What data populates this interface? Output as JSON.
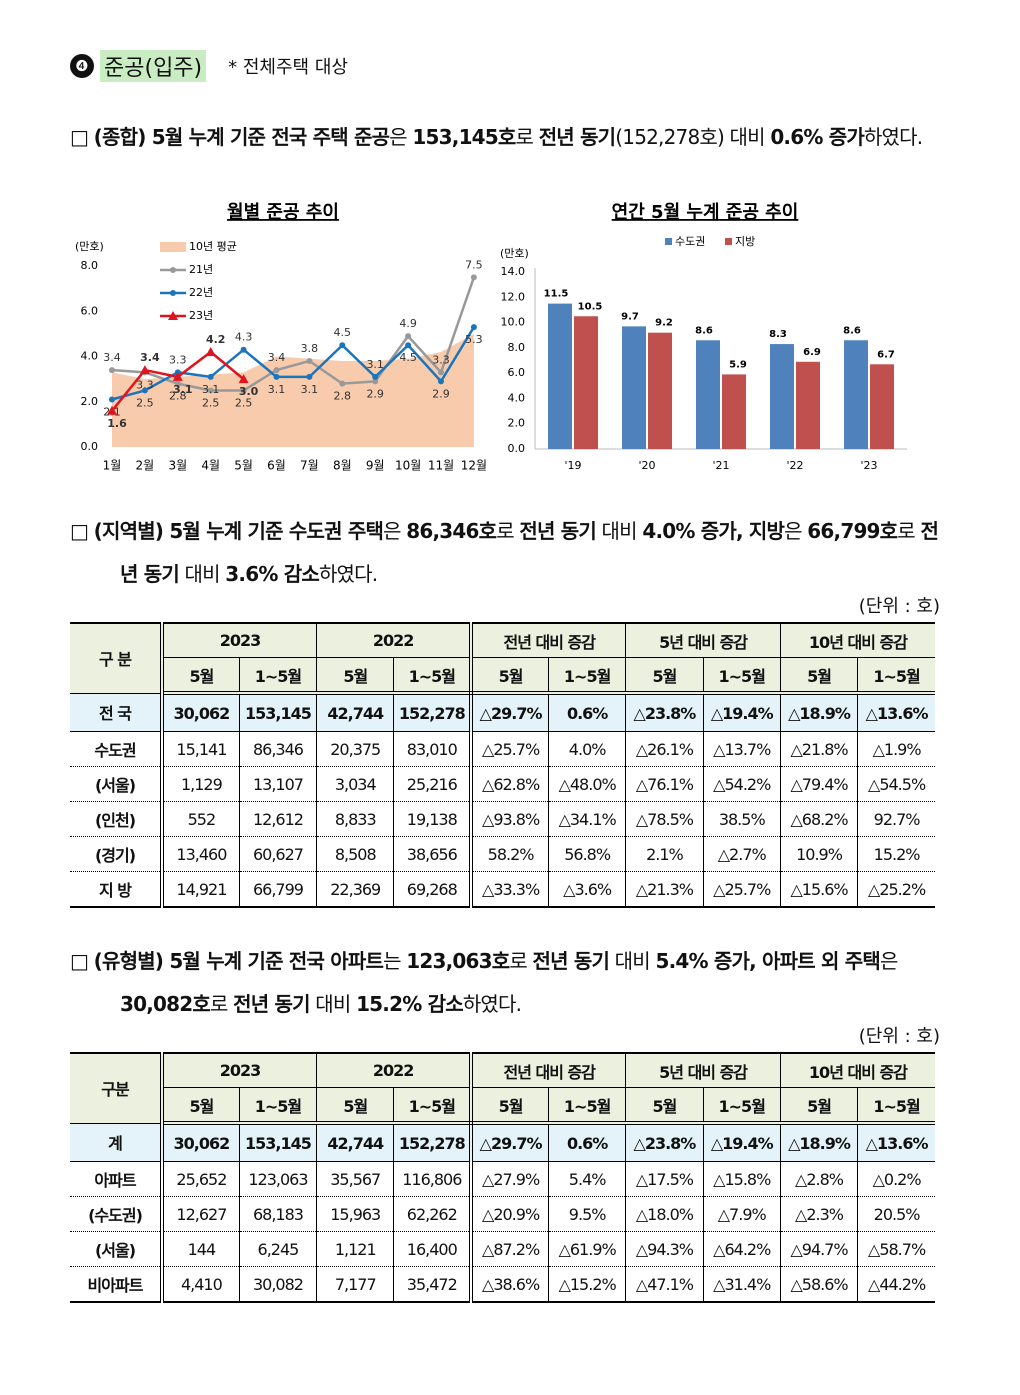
{
  "heading": {
    "number": "❹",
    "title": "준공(입주)",
    "note": "* 전체주택 대상"
  },
  "paragraphs": [
    {
      "bullet": "□",
      "runs": [
        {
          "text": "(종합) 5월 누계 기준 전국 주택 준공",
          "bold": true
        },
        {
          "text": "은 ",
          "bold": false
        },
        {
          "text": "153,145호",
          "bold": true
        },
        {
          "text": "로 ",
          "bold": false
        },
        {
          "text": "전년 동기",
          "bold": true
        },
        {
          "text": "(152,278호) 대비 ",
          "bold": false
        },
        {
          "text": "0.6% 증가",
          "bold": true
        },
        {
          "text": "하였다.",
          "bold": false
        }
      ]
    },
    {
      "bullet": "□",
      "runs": [
        {
          "text": "(지역별) 5월 누계 기준 수도권 주택",
          "bold": true
        },
        {
          "text": "은 ",
          "bold": false
        },
        {
          "text": "86,346호",
          "bold": true
        },
        {
          "text": "로 ",
          "bold": false
        },
        {
          "text": "전년 동기",
          "bold": true
        },
        {
          "text": " 대비 ",
          "bold": false
        },
        {
          "text": "4.0% 증가, 지방",
          "bold": true
        },
        {
          "text": "은 ",
          "bold": false
        },
        {
          "text": "66,799호",
          "bold": true
        },
        {
          "text": "로 ",
          "bold": false
        },
        {
          "text": "전년 동기",
          "bold": true
        },
        {
          "text": " 대비 ",
          "bold": false
        },
        {
          "text": "3.6% 감소",
          "bold": true
        },
        {
          "text": "하였다.",
          "bold": false
        }
      ]
    },
    {
      "bullet": "□",
      "runs": [
        {
          "text": "(유형별) 5월 누계 기준 전국 아파트",
          "bold": true
        },
        {
          "text": "는 ",
          "bold": false
        },
        {
          "text": "123,063호",
          "bold": true
        },
        {
          "text": "로 ",
          "bold": false
        },
        {
          "text": "전년 동기",
          "bold": true
        },
        {
          "text": " 대비 ",
          "bold": false
        },
        {
          "text": "5.4% 증가, 아파트 외 주택",
          "bold": true
        },
        {
          "text": "은 ",
          "bold": false
        },
        {
          "text": "30,082호",
          "bold": true
        },
        {
          "text": "로 ",
          "bold": false
        },
        {
          "text": "전년 동기",
          "bold": true
        },
        {
          "text": " 대비 ",
          "bold": false
        },
        {
          "text": "15.2% 감소",
          "bold": true
        },
        {
          "text": "하였다.",
          "bold": false
        }
      ]
    }
  ],
  "chart_data": [
    {
      "type": "line",
      "title": "월별 준공 추이",
      "y_label": "(만호)",
      "categories": [
        "1월",
        "2월",
        "3월",
        "4월",
        "5월",
        "6월",
        "7월",
        "8월",
        "9월",
        "10월",
        "11월",
        "12월"
      ],
      "ylim": [
        0,
        8
      ],
      "yticks": [
        {
          "value": 0,
          "label": "0.0"
        },
        {
          "value": 2,
          "label": "2.0"
        },
        {
          "value": 4,
          "label": "4.0"
        },
        {
          "value": 6,
          "label": "6.0"
        },
        {
          "value": 8,
          "label": "8.0"
        }
      ],
      "series": [
        {
          "name": "10년 평균",
          "style": "area",
          "color": "#f8cbad",
          "values": [
            3.3,
            3.0,
            3.1,
            3.2,
            3.3,
            4.0,
            3.9,
            3.8,
            3.8,
            3.9,
            4.2,
            5.0
          ]
        },
        {
          "name": "21년",
          "style": "line",
          "marker": "circle",
          "color": "#999999",
          "values": [
            3.4,
            3.3,
            2.8,
            2.5,
            2.5,
            3.4,
            3.8,
            2.8,
            2.9,
            4.9,
            3.3,
            7.5
          ]
        },
        {
          "name": "22년",
          "style": "line",
          "marker": "circle",
          "color": "#1a75bc",
          "values": [
            2.1,
            2.5,
            3.3,
            3.1,
            4.3,
            3.1,
            3.1,
            4.5,
            3.1,
            4.5,
            2.9,
            5.3
          ]
        },
        {
          "name": "23년",
          "style": "line",
          "marker": "triangle",
          "color": "#e0141e",
          "bold_labels": true,
          "values": [
            1.6,
            3.4,
            3.1,
            4.2,
            3.0,
            null,
            null,
            null,
            null,
            null,
            null,
            null
          ],
          "value_labels": [
            "1.6",
            "3.4",
            "3.1",
            "4.2",
            "3.0",
            null,
            null,
            null,
            null,
            null,
            null,
            null
          ]
        }
      ]
    },
    {
      "type": "bar",
      "title": "연간 5월 누계 준공 추이",
      "y_label": "(만호)",
      "categories": [
        "'19",
        "'20",
        "'21",
        "'22",
        "'23"
      ],
      "ylim": [
        0,
        14
      ],
      "yticks": [
        {
          "value": 0,
          "label": "0.0"
        },
        {
          "value": 2,
          "label": "2.0"
        },
        {
          "value": 4,
          "label": "4.0"
        },
        {
          "value": 6,
          "label": "6.0"
        },
        {
          "value": 8,
          "label": "8.0"
        },
        {
          "value": 10,
          "label": "10.0"
        },
        {
          "value": 12,
          "label": "12.0"
        },
        {
          "value": 14,
          "label": "14.0"
        }
      ],
      "series": [
        {
          "name": "수도권",
          "color": "#4f81bd",
          "values": [
            11.5,
            9.7,
            8.6,
            8.3,
            8.6
          ]
        },
        {
          "name": "지방",
          "color": "#c0504d",
          "values": [
            10.5,
            9.2,
            5.9,
            6.9,
            6.7
          ]
        }
      ]
    }
  ],
  "tables": [
    {
      "unit": "(단위 : 호)",
      "corner": "구 분",
      "groups": [
        "2023",
        "2022",
        "전년 대비 증감",
        "5년 대비 증감",
        "10년 대비 증감"
      ],
      "sub": [
        "5월",
        "1~5월",
        "5월",
        "1~5월",
        "5월",
        "1~5월",
        "5월",
        "1~5월",
        "5월",
        "1~5월"
      ],
      "rows": [
        {
          "label": "전 국",
          "cells": [
            "30,062",
            "153,145",
            "42,744",
            "152,278",
            "△29.7%",
            "0.6%",
            "△23.8%",
            "△19.4%",
            "△18.9%",
            "△13.6%"
          ]
        },
        {
          "label": "수도권",
          "cells": [
            "15,141",
            "86,346",
            "20,375",
            "83,010",
            "△25.7%",
            "4.0%",
            "△26.1%",
            "△13.7%",
            "△21.8%",
            "△1.9%"
          ]
        },
        {
          "label": "(서울)",
          "cells": [
            "1,129",
            "13,107",
            "3,034",
            "25,216",
            "△62.8%",
            "△48.0%",
            "△76.1%",
            "△54.2%",
            "△79.4%",
            "△54.5%"
          ]
        },
        {
          "label": "(인천)",
          "cells": [
            "552",
            "12,612",
            "8,833",
            "19,138",
            "△93.8%",
            "△34.1%",
            "△78.5%",
            "38.5%",
            "△68.2%",
            "92.7%"
          ]
        },
        {
          "label": "(경기)",
          "cells": [
            "13,460",
            "60,627",
            "8,508",
            "38,656",
            "58.2%",
            "56.8%",
            "2.1%",
            "△2.7%",
            "10.9%",
            "15.2%"
          ]
        },
        {
          "label": "지 방",
          "cells": [
            "14,921",
            "66,799",
            "22,369",
            "69,268",
            "△33.3%",
            "△3.6%",
            "△21.3%",
            "△25.7%",
            "△15.6%",
            "△25.2%"
          ]
        }
      ]
    },
    {
      "unit": "(단위 : 호)",
      "corner": "구분",
      "groups": [
        "2023",
        "2022",
        "전년 대비 증감",
        "5년 대비 증감",
        "10년 대비 증감"
      ],
      "sub": [
        "5월",
        "1~5월",
        "5월",
        "1~5월",
        "5월",
        "1~5월",
        "5월",
        "1~5월",
        "5월",
        "1~5월"
      ],
      "rows": [
        {
          "label": "계",
          "cells": [
            "30,062",
            "153,145",
            "42,744",
            "152,278",
            "△29.7%",
            "0.6%",
            "△23.8%",
            "△19.4%",
            "△18.9%",
            "△13.6%"
          ]
        },
        {
          "label": "아파트",
          "cells": [
            "25,652",
            "123,063",
            "35,567",
            "116,806",
            "△27.9%",
            "5.4%",
            "△17.5%",
            "△15.8%",
            "△2.8%",
            "△0.2%"
          ]
        },
        {
          "label": "(수도권)",
          "cells": [
            "12,627",
            "68,183",
            "15,963",
            "62,262",
            "△20.9%",
            "9.5%",
            "△18.0%",
            "△7.9%",
            "△2.3%",
            "20.5%"
          ]
        },
        {
          "label": "(서울)",
          "cells": [
            "144",
            "6,245",
            "1,121",
            "16,400",
            "△87.2%",
            "△61.9%",
            "△94.3%",
            "△64.2%",
            "△94.7%",
            "△58.7%"
          ]
        },
        {
          "label": "비아파트",
          "cells": [
            "4,410",
            "30,082",
            "7,177",
            "35,472",
            "△38.6%",
            "△15.2%",
            "△47.1%",
            "△31.4%",
            "△58.6%",
            "△44.2%"
          ]
        }
      ]
    }
  ]
}
